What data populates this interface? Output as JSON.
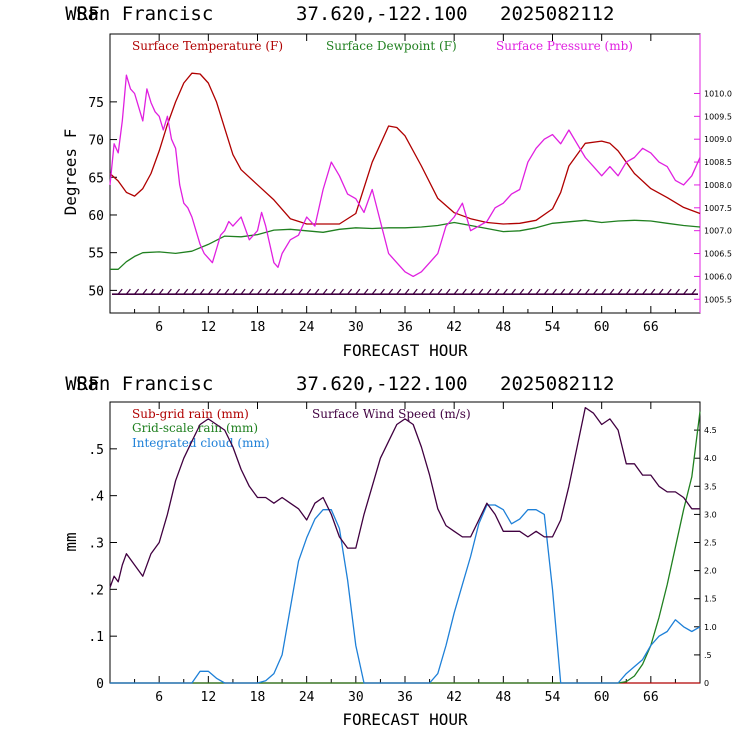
{
  "chart_data": [
    {
      "type": "line",
      "header": {
        "model": "WRF",
        "location": "San Francisc",
        "coords": "37.620,-122.100",
        "init": "2025082112"
      },
      "xlabel": "FORECAST HOUR",
      "ylabel": "Degrees F",
      "xlim": [
        0,
        72
      ],
      "xticks": [
        "6",
        "12",
        "18",
        "24",
        "30",
        "36",
        "42",
        "48",
        "54",
        "60",
        "66"
      ],
      "ylim": [
        47,
        84
      ],
      "yticks": [
        "50",
        "55",
        "60",
        "65",
        "70",
        "75"
      ],
      "y2lim": [
        1005.2,
        1011.3
      ],
      "y2ticks": [
        "1005.5",
        "1006.0",
        "1006.5",
        "1007.0",
        "1007.5",
        "1008.0",
        "1008.5",
        "1009.0",
        "1009.5",
        "1010.0"
      ],
      "series": [
        {
          "name": "Surface Temperature (F)",
          "color": "#b00000",
          "axis": "left",
          "x": [
            0,
            1,
            2,
            3,
            4,
            5,
            6,
            7,
            8,
            9,
            10,
            11,
            12,
            13,
            14,
            15,
            16,
            18,
            20,
            22,
            24,
            26,
            28,
            30,
            32,
            34,
            35,
            36,
            38,
            40,
            42,
            44,
            46,
            48,
            50,
            52,
            54,
            55,
            56,
            58,
            60,
            61,
            62,
            64,
            66,
            68,
            70,
            72
          ],
          "y": [
            65.5,
            64.5,
            63,
            62.5,
            63.5,
            65.5,
            68.5,
            72,
            75,
            77.5,
            78.8,
            78.7,
            77.5,
            75,
            71.5,
            68,
            66,
            64,
            62,
            59.5,
            58.8,
            58.8,
            58.8,
            60.2,
            67,
            71.8,
            71.6,
            70.5,
            66.5,
            62.2,
            60.3,
            59.5,
            59,
            58.8,
            58.9,
            59.3,
            60.8,
            63,
            66.5,
            69.5,
            69.8,
            69.5,
            68.5,
            65.5,
            63.5,
            62.3,
            61,
            60.2
          ]
        },
        {
          "name": "Surface Dewpoint (F)",
          "color": "#208020",
          "axis": "left",
          "x": [
            0,
            1,
            2,
            3,
            4,
            6,
            8,
            10,
            12,
            14,
            16,
            18,
            20,
            22,
            24,
            26,
            28,
            30,
            32,
            34,
            36,
            38,
            40,
            42,
            44,
            46,
            48,
            50,
            52,
            54,
            56,
            58,
            60,
            62,
            64,
            66,
            68,
            70,
            72
          ],
          "y": [
            52.8,
            52.8,
            53.8,
            54.5,
            55,
            55.1,
            54.9,
            55.2,
            56.1,
            57.2,
            57.1,
            57.4,
            58,
            58.1,
            57.9,
            57.7,
            58.1,
            58.3,
            58.2,
            58.3,
            58.3,
            58.4,
            58.6,
            59,
            58.6,
            58.2,
            57.8,
            57.9,
            58.3,
            58.9,
            59.1,
            59.3,
            59,
            59.2,
            59.3,
            59.2,
            58.9,
            58.6,
            58.4
          ]
        },
        {
          "name": "Surface Pressure (mb)",
          "color": "#e020e0",
          "axis": "right",
          "x": [
            0,
            0.5,
            1,
            1.5,
            2,
            2.5,
            3,
            3.5,
            4,
            4.5,
            5,
            5.5,
            6,
            6.5,
            7,
            7.5,
            8,
            8.5,
            9,
            9.5,
            10,
            10.5,
            11,
            11.5,
            12,
            12.5,
            13,
            13.5,
            14,
            14.5,
            15,
            16,
            17,
            18,
            18.5,
            19,
            19.5,
            20,
            20.5,
            21,
            22,
            23,
            24,
            25,
            26,
            27,
            28,
            29,
            30,
            31,
            32,
            33,
            34,
            35,
            36,
            37,
            38,
            39,
            40,
            41,
            42,
            43,
            44,
            45,
            46,
            47,
            48,
            49,
            50,
            51,
            52,
            53,
            54,
            55,
            56,
            57,
            58,
            59,
            60,
            61,
            62,
            63,
            64,
            65,
            66,
            67,
            68,
            69,
            70,
            71,
            72
          ],
          "y": [
            1008,
            1008.9,
            1008.7,
            1009.4,
            1010.4,
            1010.1,
            1010.0,
            1009.7,
            1009.4,
            1010.1,
            1009.8,
            1009.6,
            1009.5,
            1009.2,
            1009.5,
            1009.0,
            1008.8,
            1008.0,
            1007.6,
            1007.5,
            1007.3,
            1007.0,
            1006.7,
            1006.5,
            1006.4,
            1006.3,
            1006.6,
            1006.9,
            1007.0,
            1007.2,
            1007.1,
            1007.3,
            1006.8,
            1007.0,
            1007.4,
            1007.1,
            1006.7,
            1006.3,
            1006.2,
            1006.5,
            1006.8,
            1006.9,
            1007.3,
            1007.1,
            1007.9,
            1008.5,
            1008.2,
            1007.8,
            1007.7,
            1007.4,
            1007.9,
            1007.2,
            1006.5,
            1006.3,
            1006.1,
            1006.0,
            1006.1,
            1006.3,
            1006.5,
            1007.1,
            1007.3,
            1007.6,
            1007.0,
            1007.1,
            1007.2,
            1007.5,
            1007.6,
            1007.8,
            1007.9,
            1008.5,
            1008.8,
            1009.0,
            1009.1,
            1008.9,
            1009.2,
            1008.9,
            1008.6,
            1008.4,
            1008.2,
            1008.4,
            1008.2,
            1008.5,
            1008.6,
            1008.8,
            1008.7,
            1008.5,
            1008.4,
            1008.1,
            1008.0,
            1008.2,
            1008.6
          ]
        }
      ],
      "wind_barb_row": {
        "color": "#400040",
        "y": 49.5
      }
    },
    {
      "type": "line",
      "header": {
        "model": "WRF",
        "location": "San Francisc",
        "coords": "37.620,-122.100",
        "init": "2025082112"
      },
      "xlabel": "FORECAST HOUR",
      "ylabel": "mm",
      "xlim": [
        0,
        72
      ],
      "xticks": [
        "6",
        "12",
        "18",
        "24",
        "30",
        "36",
        "42",
        "48",
        "54",
        "60",
        "66"
      ],
      "ylim": [
        0,
        0.6
      ],
      "yticks": [
        "0",
        ".1",
        ".2",
        ".3",
        ".4",
        ".5"
      ],
      "y2lim": [
        0,
        5
      ],
      "y2ticks": [
        "0",
        ".5",
        "1.0",
        "1.5",
        "2.0",
        "2.5",
        "3.0",
        "3.5",
        "4.0",
        "4.5"
      ],
      "series": [
        {
          "name": "Sub-grid rain (mm)",
          "color": "#b00000",
          "axis": "left",
          "x": [
            0,
            72
          ],
          "y": [
            0,
            0
          ]
        },
        {
          "name": "Grid-scale rain (mm)",
          "color": "#208020",
          "axis": "left",
          "x": [
            0,
            62,
            63,
            64,
            65,
            66,
            67,
            68,
            69,
            70,
            71,
            72
          ],
          "y": [
            0,
            0,
            0.003,
            0.015,
            0.04,
            0.08,
            0.14,
            0.21,
            0.29,
            0.37,
            0.44,
            0.58
          ]
        },
        {
          "name": "Integrated cloud (mm)",
          "color": "#1e80d8",
          "axis": "left",
          "x": [
            0,
            10,
            11,
            12,
            13,
            14,
            18,
            19,
            20,
            21,
            22,
            23,
            24,
            25,
            26,
            27,
            28,
            29,
            30,
            31,
            39,
            40,
            41,
            42,
            43,
            44,
            45,
            46,
            47,
            48,
            49,
            50,
            51,
            52,
            53,
            54,
            55,
            62,
            63,
            64,
            65,
            66,
            67,
            68,
            69,
            70,
            71,
            72
          ],
          "y": [
            0,
            0,
            0.025,
            0.025,
            0.01,
            0,
            0,
            0.005,
            0.02,
            0.06,
            0.16,
            0.26,
            0.31,
            0.35,
            0.37,
            0.37,
            0.33,
            0.22,
            0.08,
            0,
            0,
            0.02,
            0.08,
            0.15,
            0.21,
            0.27,
            0.34,
            0.38,
            0.38,
            0.37,
            0.34,
            0.35,
            0.37,
            0.37,
            0.36,
            0.2,
            0,
            0,
            0.02,
            0.035,
            0.05,
            0.08,
            0.1,
            0.11,
            0.135,
            0.12,
            0.11,
            0.12
          ]
        },
        {
          "name": "Surface Wind Speed (m/s)",
          "color": "#400040",
          "axis": "right",
          "x": [
            0,
            0.5,
            1,
            1.5,
            2,
            3,
            4,
            5,
            6,
            7,
            8,
            9,
            10,
            11,
            12,
            13,
            14,
            15,
            16,
            17,
            18,
            19,
            20,
            21,
            22,
            23,
            24,
            25,
            26,
            27,
            28,
            29,
            30,
            31,
            32,
            33,
            34,
            35,
            36,
            37,
            38,
            39,
            40,
            41,
            42,
            43,
            44,
            45,
            46,
            47,
            48,
            49,
            50,
            51,
            52,
            53,
            54,
            55,
            56,
            57,
            58,
            59,
            60,
            61,
            62,
            63,
            64,
            65,
            66,
            67,
            68,
            69,
            70,
            71,
            72
          ],
          "y": [
            1.7,
            1.9,
            1.8,
            2.1,
            2.3,
            2.1,
            1.9,
            2.3,
            2.5,
            3.0,
            3.6,
            4.0,
            4.3,
            4.6,
            4.7,
            4.6,
            4.5,
            4.2,
            3.8,
            3.5,
            3.3,
            3.3,
            3.2,
            3.3,
            3.2,
            3.1,
            2.9,
            3.2,
            3.3,
            3.0,
            2.6,
            2.4,
            2.4,
            3.0,
            3.5,
            4.0,
            4.3,
            4.6,
            4.7,
            4.6,
            4.2,
            3.7,
            3.1,
            2.8,
            2.7,
            2.6,
            2.6,
            2.9,
            3.2,
            3.0,
            2.7,
            2.7,
            2.7,
            2.6,
            2.7,
            2.6,
            2.6,
            2.9,
            3.5,
            4.2,
            4.9,
            4.8,
            4.6,
            4.7,
            4.5,
            3.9,
            3.9,
            3.7,
            3.7,
            3.5,
            3.4,
            3.4,
            3.3,
            3.1,
            3.1
          ]
        }
      ]
    }
  ]
}
